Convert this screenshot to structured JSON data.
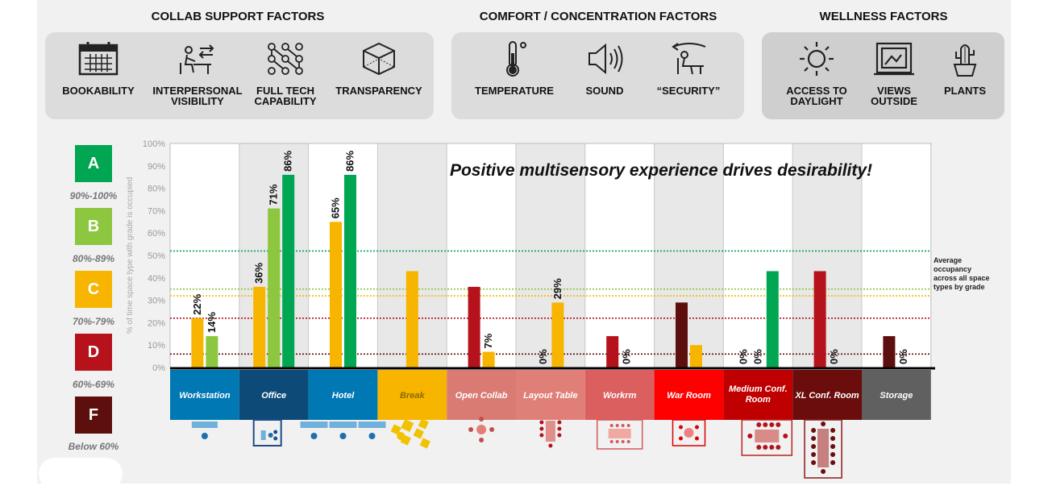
{
  "headers": {
    "collab": "COLLAB SUPPORT FACTORS",
    "comfort": "COMFORT / CONCENTRATION FACTORS",
    "wellness": "WELLNESS FACTORS"
  },
  "collab_factors": [
    {
      "icon": "calendar-icon",
      "line1": "BOOKABILITY",
      "line2": ""
    },
    {
      "icon": "person-at-desk-icon",
      "line1": "INTERPERSONAL",
      "line2": "VISIBILITY"
    },
    {
      "icon": "network-nodes-icon",
      "line1": "FULL TECH",
      "line2": "CAPABILITY"
    },
    {
      "icon": "cube-icon",
      "line1": "TRANSPARENCY",
      "line2": ""
    }
  ],
  "comfort_factors": [
    {
      "icon": "thermometer-icon",
      "line1": "TEMPERATURE",
      "line2": ""
    },
    {
      "icon": "speaker-icon",
      "line1": "SOUND",
      "line2": ""
    },
    {
      "icon": "privacy-chair-icon",
      "line1": "“SECURITY”",
      "line2": ""
    }
  ],
  "wellness_factors": [
    {
      "icon": "sun-icon",
      "line1": "ACCESS TO",
      "line2": "DAYLIGHT"
    },
    {
      "icon": "window-view-icon",
      "line1": "VIEWS",
      "line2": "OUTSIDE"
    },
    {
      "icon": "cactus-plant-icon",
      "line1": "PLANTS",
      "line2": ""
    }
  ],
  "grades": [
    {
      "letter": "A",
      "range": "90%-100%",
      "color": "#00a651"
    },
    {
      "letter": "B",
      "range": "80%-89%",
      "color": "#8dc63f"
    },
    {
      "letter": "C",
      "range": "70%-79%",
      "color": "#f7b500"
    },
    {
      "letter": "D",
      "range": "60%-69%",
      "color": "#b5121b"
    },
    {
      "letter": "F",
      "range": "Below 60%",
      "color": "#5c0f0c"
    }
  ],
  "chart_data": {
    "type": "bar",
    "title": "Positive multisensory experience drives desirability!",
    "ylabel": "% of time space type with grade is occupied",
    "ylim": [
      0,
      100
    ],
    "yticks": [
      "0%",
      "10%",
      "20%",
      "30%",
      "40%",
      "50%",
      "60%",
      "70%",
      "80%",
      "90%",
      "100%"
    ],
    "categories": [
      "Workstation",
      "Office",
      "Hotel",
      "Break",
      "Open Collab",
      "Layout Table",
      "Workrm",
      "War Room",
      "Medium Conf. Room",
      "XL Conf. Room",
      "Storage"
    ],
    "category_colors": [
      "#0078b4",
      "#0d4a78",
      "#0078b4",
      "#f7b500",
      "#d97b72",
      "#e07f77",
      "#dc5f5f",
      "#ff0000",
      "#c00000",
      "#6b0d0d",
      "#606060"
    ],
    "category_text_colors": [
      "#ffffff",
      "#ffffff",
      "#ffffff",
      "#8a6a00",
      "#ffffff",
      "#ffffff",
      "#ffffff",
      "#ffffff",
      "#ffffff",
      "#ffffff",
      "#ffffff"
    ],
    "bars": [
      {
        "category": "Workstation",
        "grade": "C",
        "value": 22,
        "label": "22%"
      },
      {
        "category": "Workstation",
        "grade": "B",
        "value": 14,
        "label": "14%"
      },
      {
        "category": "Office",
        "grade": "C",
        "value": 36,
        "label": "36%"
      },
      {
        "category": "Office",
        "grade": "B",
        "value": 71,
        "label": "71%"
      },
      {
        "category": "Office",
        "grade": "A",
        "value": 86,
        "label": "86%"
      },
      {
        "category": "Hotel",
        "grade": "C",
        "value": 65,
        "label": "65%"
      },
      {
        "category": "Hotel",
        "grade": "A",
        "value": 86,
        "label": "86%"
      },
      {
        "category": "Break",
        "grade": "C",
        "value": 43,
        "label": ""
      },
      {
        "category": "Open Collab",
        "grade": "D",
        "value": 36,
        "label": ""
      },
      {
        "category": "Open Collab",
        "grade": "C",
        "value": 7,
        "label": "7%"
      },
      {
        "category": "Layout Table",
        "grade": "D",
        "value": 0,
        "label": "0%"
      },
      {
        "category": "Layout Table",
        "grade": "C",
        "value": 29,
        "label": "29%"
      },
      {
        "category": "Workrm",
        "grade": "D",
        "value": 14,
        "label": ""
      },
      {
        "category": "Workrm",
        "grade": "C",
        "value": 0,
        "label": "0%"
      },
      {
        "category": "War Room",
        "grade": "F",
        "value": 29,
        "label": ""
      },
      {
        "category": "War Room",
        "grade": "C",
        "value": 10,
        "label": ""
      },
      {
        "category": "Medium Conf. Room",
        "grade": "F",
        "value": 0,
        "label": "0%"
      },
      {
        "category": "Medium Conf. Room",
        "grade": "D",
        "value": 0,
        "label": "0%"
      },
      {
        "category": "Medium Conf. Room",
        "grade": "A",
        "value": 43,
        "label": ""
      },
      {
        "category": "XL Conf. Room",
        "grade": "D",
        "value": 43,
        "label": ""
      },
      {
        "category": "XL Conf. Room",
        "grade": "C",
        "value": 0,
        "label": "0%"
      },
      {
        "category": "Storage",
        "grade": "F",
        "value": 14,
        "label": ""
      },
      {
        "category": "Storage",
        "grade": "D",
        "value": 0,
        "label": "0%"
      }
    ],
    "reference_lines": [
      {
        "grade": "A",
        "value": 52
      },
      {
        "grade": "B",
        "value": 35
      },
      {
        "grade": "C",
        "value": 32
      },
      {
        "grade": "D",
        "value": 22
      },
      {
        "grade": "F",
        "value": 6
      }
    ],
    "reference_note": [
      "Average",
      "occupancy",
      "across all space",
      "types by grade"
    ],
    "grid": false,
    "shaded_columns": [
      "Office",
      "Break",
      "Layout Table",
      "War Room",
      "XL Conf. Room"
    ]
  }
}
